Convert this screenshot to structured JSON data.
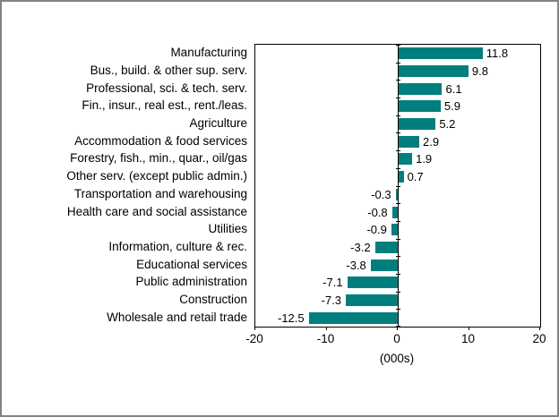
{
  "chart_data": {
    "type": "bar",
    "orientation": "horizontal",
    "title": "",
    "xlabel": "(000s)",
    "ylabel": "",
    "xlim": [
      -20,
      20
    ],
    "x_ticks": [
      -20,
      -10,
      0,
      10,
      20
    ],
    "x_tick_labels": [
      "-20",
      "-10",
      "0",
      "10",
      "20"
    ],
    "grid": false,
    "legend": false,
    "bar_color": "#007F7E",
    "categories": [
      "Manufacturing",
      "Bus., build. & other sup. serv.",
      "Professional, sci. & tech. serv.",
      "Fin., insur., real est., rent./leas.",
      "Agriculture",
      "Accommodation & food services",
      "Forestry, fish., min., quar., oil/gas",
      "Other serv. (except public admin.)",
      "Transportation and warehousing",
      "Health care and social assistance",
      "Utilities",
      "Information, culture & rec.",
      "Educational services",
      "Public administration",
      "Construction",
      "Wholesale and retail trade"
    ],
    "values": [
      11.8,
      9.8,
      6.1,
      5.9,
      5.2,
      2.9,
      1.9,
      0.7,
      -0.3,
      -0.8,
      -0.9,
      -3.2,
      -3.8,
      -7.1,
      -7.3,
      -12.5
    ],
    "value_labels": [
      "11.8",
      "9.8",
      "6.1",
      "5.9",
      "5.2",
      "2.9",
      "1.9",
      "0.7",
      "-0.3",
      "-0.8",
      "-0.9",
      "-3.2",
      "-3.8",
      "-7.1",
      "-7.3",
      "-12.5"
    ]
  }
}
